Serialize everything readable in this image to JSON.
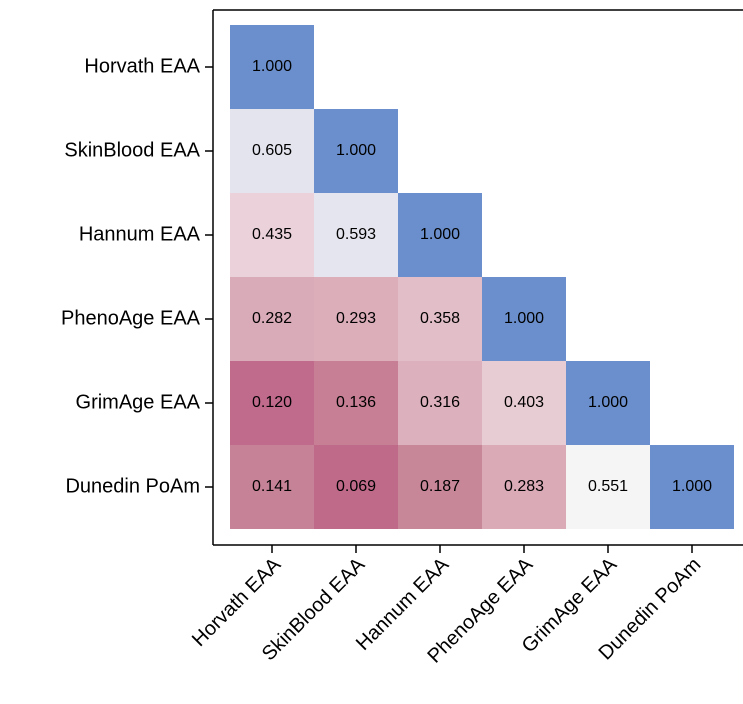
{
  "chart_data": {
    "type": "heatmap",
    "categories": [
      "Horvath EAA",
      "SkinBlood EAA",
      "Hannum EAA",
      "PhenoAge EAA",
      "GrimAge EAA",
      "Dunedin PoAm"
    ],
    "values": [
      [
        1,
        null,
        null,
        null,
        null,
        null
      ],
      [
        0.605,
        1,
        null,
        null,
        null,
        null
      ],
      [
        0.435,
        0.593,
        1,
        null,
        null,
        null
      ],
      [
        0.282,
        0.293,
        0.358,
        1,
        null,
        null
      ],
      [
        0.12,
        0.136,
        0.316,
        0.403,
        1,
        null
      ],
      [
        0.141,
        0.069,
        0.187,
        0.283,
        0.551,
        1
      ]
    ],
    "value_labels": [
      [
        "1.000",
        null,
        null,
        null,
        null,
        null
      ],
      [
        "0.605",
        "1.000",
        null,
        null,
        null,
        null
      ],
      [
        "0.435",
        "0.593",
        "1.000",
        null,
        null,
        null
      ],
      [
        "0.282",
        "0.293",
        "0.358",
        "1.000",
        null,
        null
      ],
      [
        "0.120",
        "0.136",
        "0.316",
        "0.403",
        "1.000",
        null
      ],
      [
        "0.141",
        "0.069",
        "0.187",
        "0.283",
        "0.551",
        "1.000"
      ]
    ],
    "colors": [
      [
        "#6a8fcc",
        null,
        null,
        null,
        null,
        null
      ],
      [
        "#e4e4ef",
        "#6a8fcc",
        null,
        null,
        null,
        null
      ],
      [
        "#ebd1d9",
        "#e5e5ef",
        "#6a8fcc",
        null,
        null,
        null
      ],
      [
        "#d9aab8",
        "#dbaeba",
        "#e2bec8",
        "#6a8fcc",
        null,
        null
      ],
      [
        "#c06a8c",
        "#c67f94",
        "#dcb0bc",
        "#e8ccd3",
        "#6a8fcc",
        null
      ],
      [
        "#c68296",
        "#c06a8a",
        "#c78799",
        "#daaab7",
        "#f5f5f5",
        "#6a8fcc"
      ]
    ]
  }
}
